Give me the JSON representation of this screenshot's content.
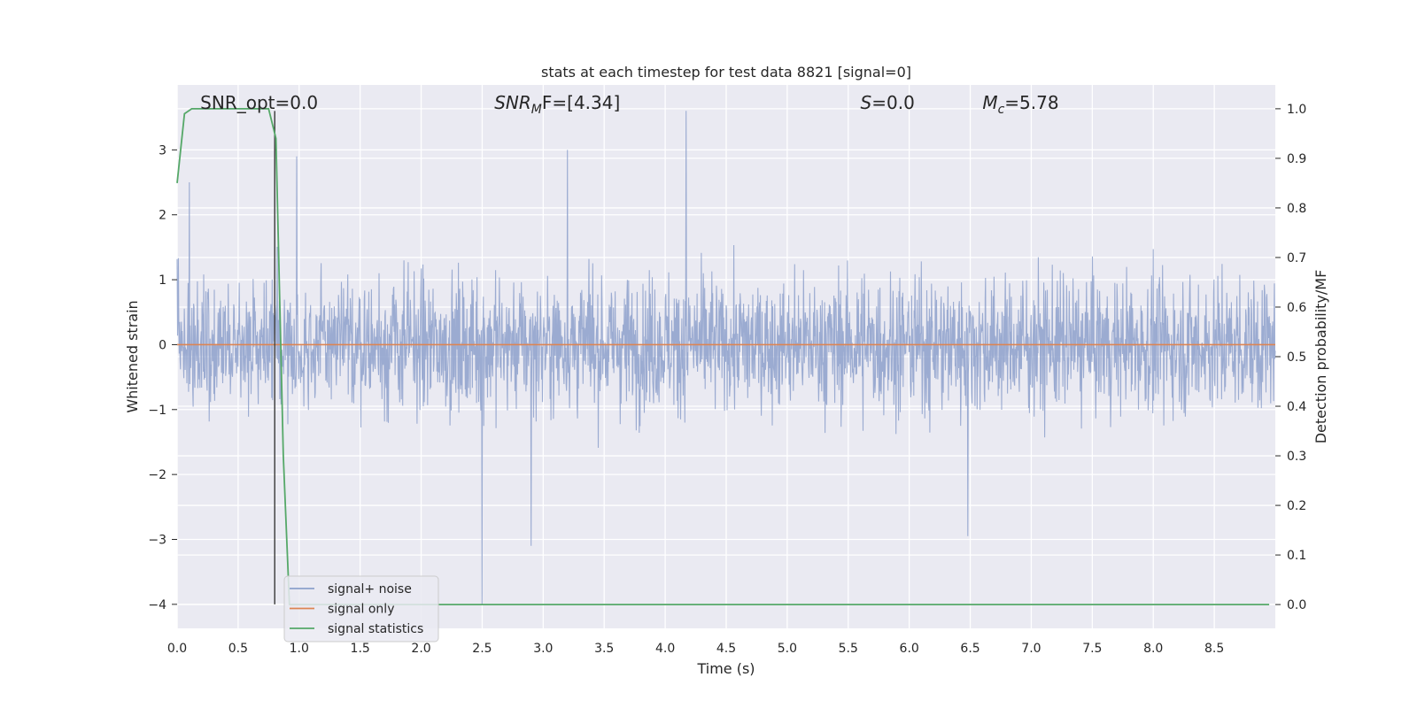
{
  "chart_data": {
    "type": "line",
    "title": "stats at each timestep for test data 8821 [signal=0]",
    "xlabel": "Time (s)",
    "ylabel": "Whitened strain",
    "y2label": "Detection probability/MF",
    "xlim": [
      0,
      9.0
    ],
    "ylim": [
      -4.37,
      4.0
    ],
    "y2lim": [
      -0.048,
      1.048
    ],
    "xticks": [
      0.0,
      0.5,
      1.0,
      1.5,
      2.0,
      2.5,
      3.0,
      3.5,
      4.0,
      4.5,
      5.0,
      5.5,
      6.0,
      6.5,
      7.0,
      7.5,
      8.0,
      8.5
    ],
    "xtick_labels": [
      "0.0",
      "0.5",
      "1.0",
      "1.5",
      "2.0",
      "2.5",
      "3.0",
      "3.5",
      "4.0",
      "4.5",
      "5.0",
      "5.5",
      "6.0",
      "6.5",
      "7.0",
      "7.5",
      "8.0",
      "8.5"
    ],
    "yticks": [
      3,
      2,
      1,
      0,
      -1,
      -2,
      -3,
      -4
    ],
    "ytick_labels": [
      "3",
      "2",
      "1",
      "0",
      "−1",
      "−2",
      "−3",
      "−4"
    ],
    "y2ticks": [
      1.0,
      0.9,
      0.8,
      0.7,
      0.6,
      0.5,
      0.4,
      0.3,
      0.2,
      0.1,
      0.0
    ],
    "y2tick_labels": [
      "1.0",
      "0.9",
      "0.8",
      "0.7",
      "0.6",
      "0.5",
      "0.4",
      "0.3",
      "0.2",
      "0.1",
      "0.0"
    ],
    "grid": true,
    "legend_position": "lower-left",
    "annotations": [
      {
        "text": "SNR_opt=0.0",
        "x": 0.19
      },
      {
        "text": "SNR",
        "sub": "M",
        "tail": "F=[4.34]",
        "x": 2.6
      },
      {
        "text": "S",
        "tail": "=0.0",
        "x": 5.6
      },
      {
        "text": "M",
        "sub": "c",
        "tail": "=5.78",
        "x": 6.6
      }
    ],
    "marker_line": {
      "x": 0.8,
      "y_from": -4.0,
      "y_to": 3.6
    },
    "series": [
      {
        "name": "signal+ noise",
        "color": "#8da0cb",
        "axis": "left",
        "description_values": {
          "typical_band": [
            -1.5,
            1.5
          ],
          "max": 3.6,
          "max_at": 4.17,
          "min": -4.0,
          "min_at": 2.5,
          "spikes": [
            [
              0.1,
              2.5
            ],
            [
              0.98,
              2.9
            ],
            [
              2.9,
              -3.1
            ],
            [
              3.2,
              3.0
            ],
            [
              4.17,
              3.6
            ],
            [
              6.48,
              -2.95
            ],
            [
              2.5,
              -4.0
            ]
          ]
        }
      },
      {
        "name": "signal only",
        "color": "#dd8452",
        "axis": "left",
        "x": [
          0.0,
          9.0
        ],
        "values": [
          0.0,
          0.0
        ]
      },
      {
        "name": "signal statistics",
        "color": "#55a868",
        "axis": "right",
        "x": [
          0.0,
          0.06,
          0.12,
          0.2,
          0.3,
          0.4,
          0.5,
          0.6,
          0.7,
          0.75,
          0.81,
          0.87,
          0.92,
          1.0,
          2.0,
          3.0,
          4.0,
          5.0,
          6.0,
          7.0,
          8.0,
          8.5,
          8.95
        ],
        "values": [
          0.85,
          0.99,
          1.0,
          1.0,
          1.0,
          1.0,
          1.0,
          1.0,
          1.0,
          1.0,
          0.94,
          0.3,
          0.0,
          0.0,
          0.0,
          0.0,
          0.0,
          0.0,
          0.0,
          0.0,
          0.0,
          0.0,
          0.0
        ]
      }
    ]
  }
}
